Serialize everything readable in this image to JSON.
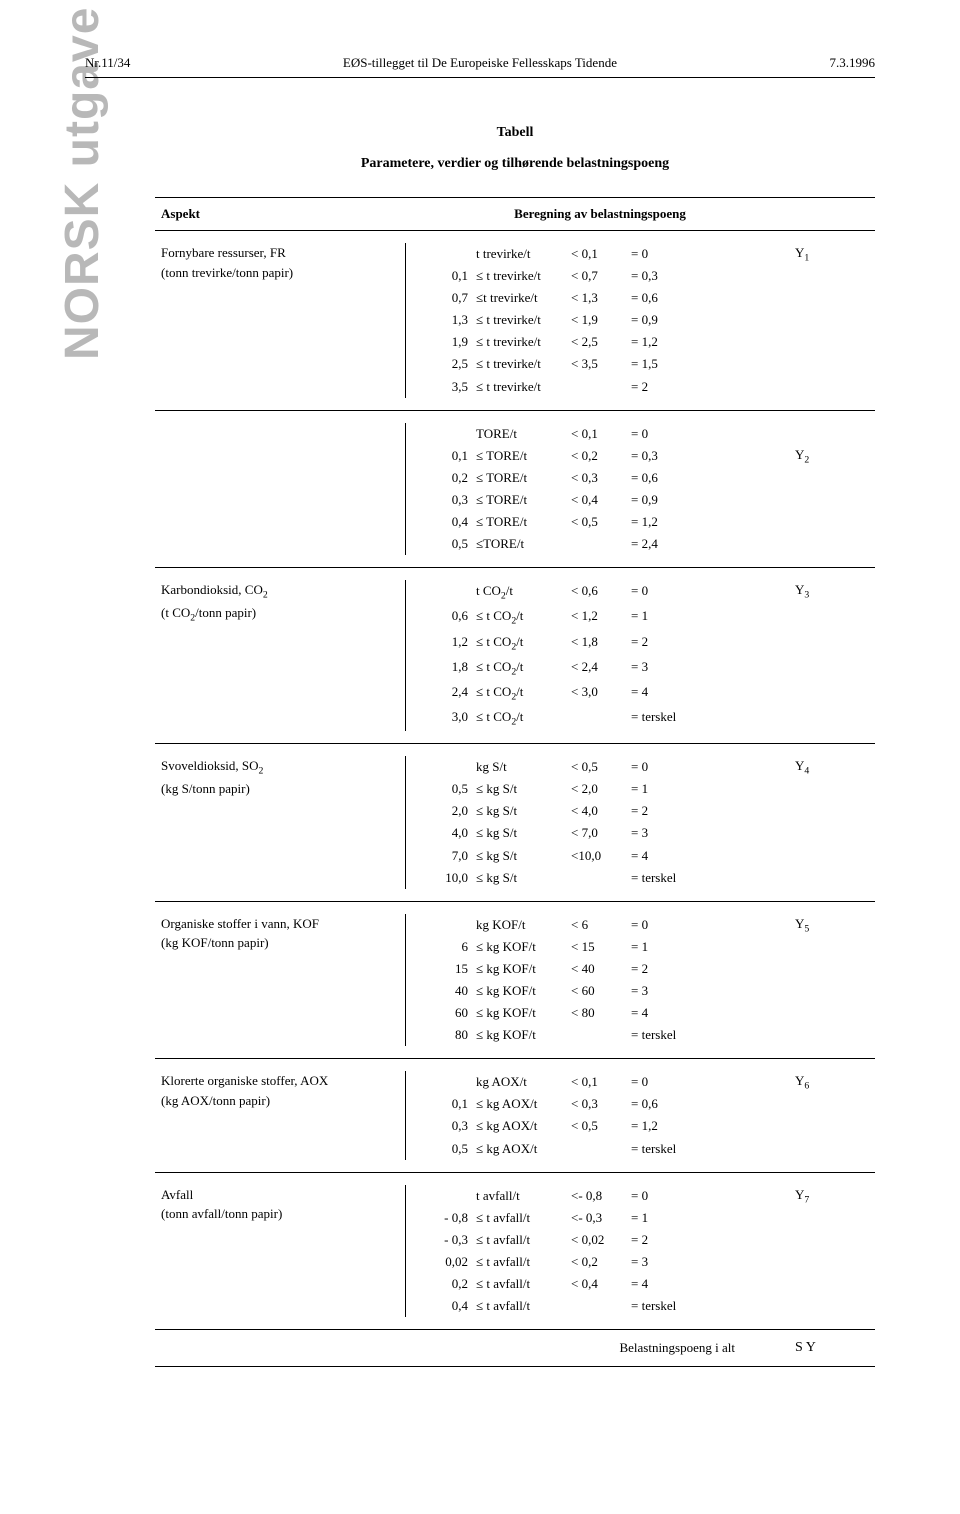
{
  "sidebar": "NORSK utgave",
  "header": {
    "left": "Nr.11/34",
    "center": "EØS-tillegget til De Europeiske Fellesskaps Tidende",
    "right": "7.3.1996"
  },
  "title": "Tabell",
  "subtitle": "Parametere, verdier og tilhørende belastningspoeng",
  "columns": {
    "c1": "Aspekt",
    "c2": "Beregning av belastningspoeng",
    "c3": ""
  },
  "sections": [
    {
      "aspect_line1": "Fornybare ressurser, FR",
      "aspect_line2": "(tonn trevirke/tonn papir)",
      "y_label": "Y",
      "y_sub": "1",
      "rows": [
        {
          "a": "",
          "b": "t trevirke/t",
          "c": "< 0,1",
          "d": "= 0"
        },
        {
          "a": "0,1",
          "b": "≤ t trevirke/t",
          "c": "< 0,7",
          "d": "= 0,3"
        },
        {
          "a": "0,7",
          "b": "≤t trevirke/t",
          "c": "< 1,3",
          "d": "= 0,6"
        },
        {
          "a": "1,3",
          "b": "≤ t trevirke/t",
          "c": "< 1,9",
          "d": "= 0,9"
        },
        {
          "a": "1,9",
          "b": "≤ t trevirke/t",
          "c": "< 2,5",
          "d": "= 1,2"
        },
        {
          "a": "2,5",
          "b": "≤ t trevirke/t",
          "c": "< 3,5",
          "d": "= 1,5"
        },
        {
          "a": "3,5",
          "b": "≤ t trevirke/t",
          "c": "",
          "d": "= 2"
        }
      ]
    },
    {
      "aspect_line1": "",
      "aspect_line2": "",
      "y_label": "Y",
      "y_sub": "2",
      "y_offset": 1,
      "rows": [
        {
          "a": "",
          "b": "TORE/t",
          "c": "< 0,1",
          "d": "= 0"
        },
        {
          "a": "0,1",
          "b": "≤ TORE/t",
          "c": "< 0,2",
          "d": "= 0,3"
        },
        {
          "a": "0,2",
          "b": "≤ TORE/t",
          "c": "< 0,3",
          "d": "= 0,6"
        },
        {
          "a": "0,3",
          "b": "≤ TORE/t",
          "c": "< 0,4",
          "d": "= 0,9"
        },
        {
          "a": "0,4",
          "b": "≤ TORE/t",
          "c": "< 0,5",
          "d": "= 1,2"
        },
        {
          "a": "0,5",
          "b": "≤TORE/t",
          "c": "",
          "d": "= 2,4"
        }
      ]
    },
    {
      "aspect_line1_html": "Karbondioksid, CO<sub>2</sub>",
      "aspect_line2_html": "(t CO<sub>2</sub>/tonn papir)",
      "y_label": "Y",
      "y_sub": "3",
      "rows_html": [
        {
          "a": "",
          "b": "t CO<sub>2</sub>/t",
          "c": "< 0,6",
          "d": "= 0"
        },
        {
          "a": "0,6",
          "b": "≤ t CO<sub>2</sub>/t",
          "c": "< 1,2",
          "d": "= 1"
        },
        {
          "a": "1,2",
          "b": "≤ t CO<sub>2</sub>/t",
          "c": "< 1,8",
          "d": "= 2"
        },
        {
          "a": "1,8",
          "b": "≤ t CO<sub>2</sub>/t",
          "c": "< 2,4",
          "d": "= 3"
        },
        {
          "a": "2,4",
          "b": "≤ t CO<sub>2</sub>/t",
          "c": "< 3,0",
          "d": "= 4"
        },
        {
          "a": "3,0",
          "b": "≤ t CO<sub>2</sub>/t",
          "c": "",
          "d": "= terskel"
        }
      ]
    },
    {
      "aspect_line1_html": "Svoveldioksid, SO<sub>2</sub>",
      "aspect_line2": "(kg S/tonn papir)",
      "y_label": "Y",
      "y_sub": "4",
      "rows": [
        {
          "a": "",
          "b": "kg S/t",
          "c": "< 0,5",
          "d": "= 0"
        },
        {
          "a": "0,5",
          "b": "≤ kg S/t",
          "c": "< 2,0",
          "d": "= 1"
        },
        {
          "a": "2,0",
          "b": "≤ kg S/t",
          "c": "< 4,0",
          "d": "= 2"
        },
        {
          "a": "4,0",
          "b": "≤ kg S/t",
          "c": "< 7,0",
          "d": "= 3"
        },
        {
          "a": "7,0",
          "b": "≤ kg S/t",
          "c": "<10,0",
          "d": "= 4"
        },
        {
          "a": "10,0",
          "b": "≤ kg S/t",
          "c": "",
          "d": "= terskel"
        }
      ]
    },
    {
      "aspect_line1": "Organiske stoffer i vann, KOF",
      "aspect_line2": "(kg KOF/tonn papir)",
      "y_label": "Y",
      "y_sub": "5",
      "rows": [
        {
          "a": "",
          "b": "kg KOF/t",
          "c": "< 6",
          "d": "= 0"
        },
        {
          "a": "6",
          "b": "≤ kg KOF/t",
          "c": "< 15",
          "d": "= 1"
        },
        {
          "a": "15",
          "b": "≤ kg KOF/t",
          "c": "< 40",
          "d": "= 2"
        },
        {
          "a": "40",
          "b": "≤ kg KOF/t",
          "c": "< 60",
          "d": "= 3"
        },
        {
          "a": "60",
          "b": "≤ kg KOF/t",
          "c": "< 80",
          "d": "= 4"
        },
        {
          "a": "80",
          "b": "≤ kg KOF/t",
          "c": "",
          "d": "= terskel"
        }
      ]
    },
    {
      "aspect_line1": "Klorerte organiske stoffer, AOX",
      "aspect_line2": "(kg AOX/tonn papir)",
      "y_label": "Y",
      "y_sub": "6",
      "rows": [
        {
          "a": "",
          "b": "kg AOX/t",
          "c": "< 0,1",
          "d": "= 0"
        },
        {
          "a": "0,1",
          "b": "≤ kg AOX/t",
          "c": "< 0,3",
          "d": "= 0,6"
        },
        {
          "a": "0,3",
          "b": "≤ kg AOX/t",
          "c": "< 0,5",
          "d": "= 1,2"
        },
        {
          "a": "0,5",
          "b": "≤ kg AOX/t",
          "c": "",
          "d": "= terskel"
        }
      ]
    },
    {
      "aspect_line1": "Avfall",
      "aspect_line2": "(tonn avfall/tonn papir)",
      "y_label": "Y",
      "y_sub": "7",
      "rows": [
        {
          "a": "",
          "b": "t avfall/t",
          "c": "<- 0,8",
          "d": "= 0"
        },
        {
          "a": "- 0,8",
          "b": "≤ t avfall/t",
          "c": "<- 0,3",
          "d": "= 1"
        },
        {
          "a": "- 0,3",
          "b": "≤ t avfall/t",
          "c": "< 0,02",
          "d": "= 2"
        },
        {
          "a": "0,02",
          "b": "≤ t avfall/t",
          "c": "< 0,2",
          "d": "= 3"
        },
        {
          "a": "0,2",
          "b": "≤ t avfall/t",
          "c": "< 0,4",
          "d": "= 4"
        },
        {
          "a": "0,4",
          "b": "≤ t avfall/t",
          "c": "",
          "d": "= terskel"
        }
      ]
    }
  ],
  "footer": {
    "label": "Belastningspoeng i alt",
    "sigma": "S Y"
  },
  "style": {
    "page_bg": "#ffffff",
    "text_color": "#000000",
    "sidebar_color": "#b8b8b8",
    "border_color": "#000000",
    "body_fontsize": 13,
    "title_fontsize": 14,
    "sidebar_fontsize": 48
  }
}
